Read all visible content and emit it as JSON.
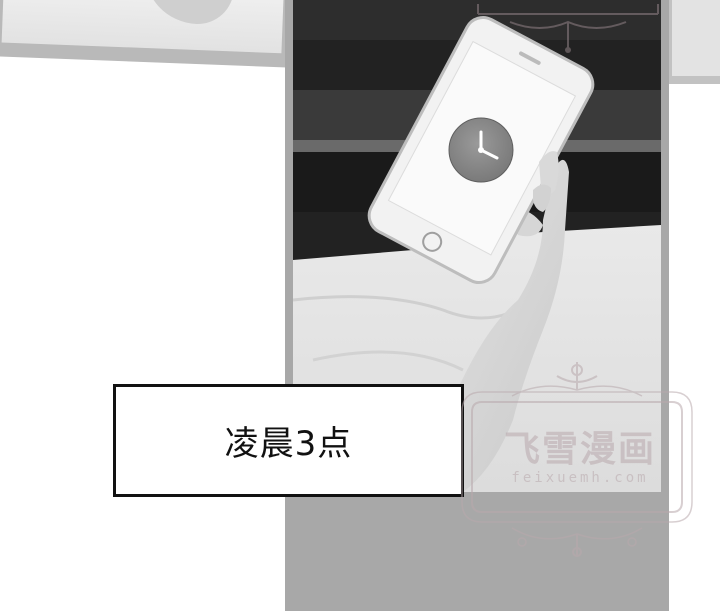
{
  "caption": {
    "text": "凌晨3点"
  },
  "watermark": {
    "title": "飞雪漫画",
    "url": "feixuemh.com"
  },
  "colors": {
    "panel_border": "#a8a8a8",
    "caption_border": "#111111",
    "watermark": "#b9a9ad"
  }
}
